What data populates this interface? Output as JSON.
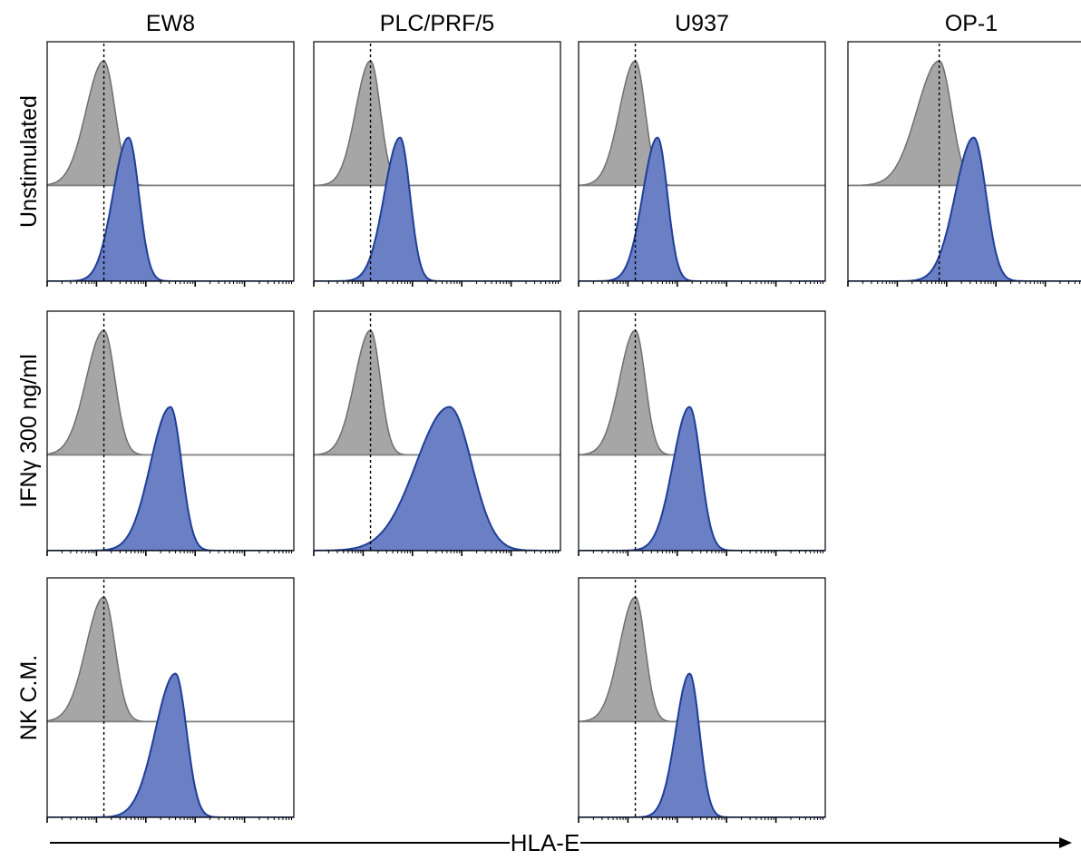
{
  "chart_data": {
    "type": "area",
    "description_units": "x = relative log fluorescence position across the panel (0-100); y = normalized count (0-100)",
    "x_axis_label": "HLA-E",
    "columns": [
      "EW8",
      "PLC/PRF/5",
      "U937",
      "OP-1"
    ],
    "rows": [
      "Unstimulated",
      "IFNγ 300 ng/ml",
      "NK C.M."
    ],
    "xlim": [
      0,
      100
    ],
    "ylim": [
      0,
      100
    ],
    "colors": {
      "control_fill": "#a6a6a6",
      "control_line": "#6f6f6f",
      "stained_fill": "#6a7fc4",
      "stained_line": "#1f3f99",
      "baseline": "#808080"
    },
    "panels": [
      {
        "row": 0,
        "col": 0,
        "dashed_x": 23,
        "control": {
          "peak_x": 23,
          "width": 4.5,
          "skew": 1.6
        },
        "stained": {
          "peak_x": 33,
          "width": 4.2,
          "skew": 1.5
        }
      },
      {
        "row": 0,
        "col": 1,
        "dashed_x": 23,
        "control": {
          "peak_x": 23,
          "width": 4.0,
          "skew": 1.5
        },
        "stained": {
          "peak_x": 35,
          "width": 4.0,
          "skew": 1.6
        }
      },
      {
        "row": 0,
        "col": 2,
        "dashed_x": 23,
        "control": {
          "peak_x": 23,
          "width": 4.0,
          "skew": 1.6
        },
        "stained": {
          "peak_x": 32,
          "width": 4.0,
          "skew": 1.5
        }
      },
      {
        "row": 0,
        "col": 3,
        "dashed_x": 37,
        "control": {
          "peak_x": 37,
          "width": 5.0,
          "skew": 1.8
        },
        "stained": {
          "peak_x": 51,
          "width": 5.0,
          "skew": 1.5
        }
      },
      {
        "row": 1,
        "col": 0,
        "dashed_x": 23,
        "control": {
          "peak_x": 23,
          "width": 4.5,
          "skew": 1.6
        },
        "stained": {
          "peak_x": 50,
          "width": 4.5,
          "skew": 1.8
        }
      },
      {
        "row": 1,
        "col": 1,
        "dashed_x": 23,
        "control": {
          "peak_x": 23,
          "width": 4.0,
          "skew": 1.6
        },
        "stained": {
          "peak_x": 55,
          "width": 9.0,
          "skew": 1.5
        }
      },
      {
        "row": 1,
        "col": 2,
        "dashed_x": 23,
        "control": {
          "peak_x": 23,
          "width": 4.0,
          "skew": 1.6
        },
        "stained": {
          "peak_x": 45,
          "width": 4.5,
          "skew": 1.5
        }
      },
      {
        "row": 2,
        "col": 0,
        "dashed_x": 23,
        "control": {
          "peak_x": 23,
          "width": 4.5,
          "skew": 1.6
        },
        "stained": {
          "peak_x": 52,
          "width": 4.5,
          "skew": 1.8
        }
      },
      {
        "row": 2,
        "col": 2,
        "dashed_x": 23,
        "control": {
          "peak_x": 23,
          "width": 4.0,
          "skew": 1.6
        },
        "stained": {
          "peak_x": 45,
          "width": 4.0,
          "skew": 1.4
        }
      }
    ]
  }
}
